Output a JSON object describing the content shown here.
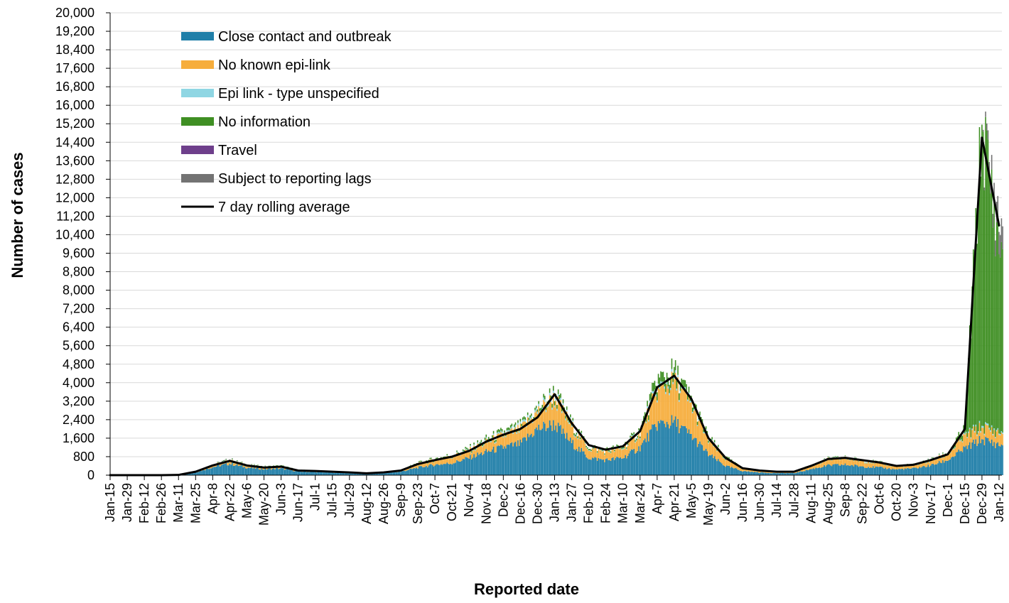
{
  "chart_data": {
    "type": "bar",
    "stacked": true,
    "xlabel": "Reported date",
    "ylabel": "Number of cases",
    "ylim": [
      0,
      20000
    ],
    "ytick_step": 800,
    "y_tick_labels": [
      "0",
      "800",
      "1,600",
      "2,400",
      "3,200",
      "4,000",
      "4,800",
      "5,600",
      "6,400",
      "7,200",
      "8,000",
      "8,800",
      "9,600",
      "10,400",
      "11,200",
      "12,000",
      "12,800",
      "13,600",
      "14,400",
      "15,200",
      "16,000",
      "16,800",
      "17,600",
      "18,400",
      "19,200",
      "20,000"
    ],
    "x_tick_labels": [
      "Jan-15",
      "Jan-29",
      "Feb-12",
      "Feb-26",
      "Mar-11",
      "Mar-25",
      "Apr-8",
      "Apr-22",
      "May-6",
      "May-20",
      "Jun-3",
      "Jun-17",
      "Jul-1",
      "Jul-15",
      "Jul-29",
      "Aug-12",
      "Aug-26",
      "Sep-9",
      "Sep-23",
      "Oct-7",
      "Oct-21",
      "Nov-4",
      "Nov-18",
      "Dec-2",
      "Dec-16",
      "Dec-30",
      "Jan-13",
      "Jan-27",
      "Feb-10",
      "Feb-24",
      "Mar-10",
      "Mar-24",
      "Apr-7",
      "Apr-21",
      "May-5",
      "May-19",
      "Jun-2",
      "Jun-16",
      "Jun-30",
      "Jul-14",
      "Jul-28",
      "Aug-11",
      "Aug-25",
      "Sep-8",
      "Sep-22",
      "Oct-6",
      "Oct-20",
      "Nov-3",
      "Nov-17",
      "Dec-1",
      "Dec-15",
      "Dec-29",
      "Jan-12"
    ],
    "grid": true,
    "legend_position": "upper-left",
    "series_colors": {
      "close_contact": "#1f7ea8",
      "no_epi_link": "#f6ad3c",
      "epi_unspecified": "#8fd6e3",
      "no_information": "#3f8f23",
      "travel": "#6e3f8b",
      "reporting_lags": "#737373",
      "rolling_average": "#000000"
    },
    "series": [
      {
        "key": "close_contact",
        "name": "Close contact and outbreak",
        "kind": "bar"
      },
      {
        "key": "no_epi_link",
        "name": "No known epi-link",
        "kind": "bar"
      },
      {
        "key": "epi_unspecified",
        "name": "Epi link - type unspecified",
        "kind": "bar"
      },
      {
        "key": "no_information",
        "name": "No information",
        "kind": "bar"
      },
      {
        "key": "travel",
        "name": "Travel",
        "kind": "bar"
      },
      {
        "key": "reporting_lags",
        "name": "Subject to reporting lags",
        "kind": "bar"
      },
      {
        "key": "rolling_average",
        "name": "7 day rolling average",
        "kind": "line"
      }
    ],
    "rolling_average_by_tick": {
      "x": [
        "Jan-15",
        "Jan-29",
        "Feb-12",
        "Feb-26",
        "Mar-11",
        "Mar-25",
        "Apr-8",
        "Apr-22",
        "May-6",
        "May-20",
        "Jun-3",
        "Jun-17",
        "Jul-1",
        "Jul-15",
        "Jul-29",
        "Aug-12",
        "Aug-26",
        "Sep-9",
        "Sep-23",
        "Oct-7",
        "Oct-21",
        "Nov-4",
        "Nov-18",
        "Dec-2",
        "Dec-16",
        "Dec-30",
        "Jan-13",
        "Jan-27",
        "Feb-10",
        "Feb-24",
        "Mar-10",
        "Mar-24",
        "Apr-7",
        "Apr-21",
        "May-5",
        "May-19",
        "Jun-2",
        "Jun-16",
        "Jun-30",
        "Jul-14",
        "Jul-28",
        "Aug-11",
        "Aug-25",
        "Sep-8",
        "Sep-22",
        "Oct-6",
        "Oct-20",
        "Nov-3",
        "Nov-17",
        "Dec-1",
        "Dec-15",
        "Dec-29",
        "Jan-12"
      ],
      "values": [
        0,
        0,
        0,
        0,
        10,
        150,
        420,
        620,
        420,
        330,
        370,
        200,
        180,
        150,
        120,
        80,
        120,
        200,
        480,
        650,
        800,
        1050,
        1450,
        1750,
        2000,
        2500,
        3500,
        2250,
        1300,
        1100,
        1250,
        1900,
        3800,
        4300,
        3300,
        1600,
        750,
        300,
        200,
        150,
        150,
        400,
        700,
        750,
        650,
        550,
        400,
        450,
        650,
        900,
        2000,
        14600,
        10800
      ]
    },
    "bar_stack_by_tick": {
      "x": [
        "Jan-15",
        "Jan-29",
        "Feb-12",
        "Feb-26",
        "Mar-11",
        "Mar-25",
        "Apr-8",
        "Apr-22",
        "May-6",
        "May-20",
        "Jun-3",
        "Jun-17",
        "Jul-1",
        "Jul-15",
        "Jul-29",
        "Aug-12",
        "Aug-26",
        "Sep-9",
        "Sep-23",
        "Oct-7",
        "Oct-21",
        "Nov-4",
        "Nov-18",
        "Dec-2",
        "Dec-16",
        "Dec-30",
        "Jan-13",
        "Jan-27",
        "Feb-10",
        "Feb-24",
        "Mar-10",
        "Mar-24",
        "Apr-7",
        "Apr-21",
        "May-5",
        "May-19",
        "Jun-2",
        "Jun-16",
        "Jun-30",
        "Jul-14",
        "Jul-28",
        "Aug-11",
        "Aug-25",
        "Sep-8",
        "Sep-22",
        "Oct-6",
        "Oct-20",
        "Nov-3",
        "Nov-17",
        "Dec-1",
        "Dec-15",
        "Dec-29",
        "Jan-12"
      ],
      "close_contact": [
        0,
        0,
        0,
        0,
        8,
        120,
        350,
        500,
        330,
        260,
        290,
        160,
        140,
        120,
        90,
        60,
        90,
        150,
        330,
        450,
        520,
        750,
        1000,
        1200,
        1350,
        2000,
        2200,
        1400,
        750,
        650,
        750,
        1200,
        2200,
        2300,
        1700,
        900,
        400,
        180,
        120,
        90,
        90,
        260,
        420,
        450,
        380,
        330,
        250,
        290,
        420,
        650,
        1150,
        1550,
        1300
      ],
      "no_epi_link": [
        0,
        0,
        0,
        0,
        2,
        30,
        80,
        120,
        90,
        70,
        80,
        40,
        40,
        30,
        30,
        20,
        30,
        50,
        150,
        200,
        280,
        300,
        400,
        500,
        600,
        700,
        1100,
        700,
        400,
        350,
        400,
        600,
        1400,
        1700,
        1300,
        600,
        300,
        100,
        70,
        50,
        50,
        130,
        250,
        270,
        230,
        190,
        130,
        140,
        200,
        250,
        500,
        500,
        500
      ],
      "epi_unspecified": [
        0,
        0,
        0,
        0,
        0,
        0,
        10,
        20,
        10,
        10,
        10,
        5,
        5,
        5,
        5,
        0,
        5,
        5,
        10,
        20,
        30,
        40,
        50,
        60,
        80,
        100,
        100,
        60,
        30,
        30,
        40,
        60,
        100,
        100,
        70,
        40,
        20,
        10,
        5,
        5,
        5,
        10,
        20,
        20,
        15,
        15,
        10,
        10,
        20,
        30,
        50,
        80,
        60
      ],
      "no_information": [
        0,
        0,
        0,
        0,
        0,
        0,
        10,
        30,
        20,
        20,
        20,
        10,
        10,
        5,
        5,
        0,
        5,
        5,
        30,
        40,
        50,
        60,
        100,
        100,
        100,
        100,
        200,
        100,
        60,
        50,
        60,
        80,
        400,
        400,
        200,
        100,
        50,
        10,
        10,
        5,
        5,
        10,
        20,
        20,
        20,
        15,
        10,
        10,
        20,
        40,
        300,
        13000,
        8000
      ],
      "travel": [
        0,
        0,
        0,
        0,
        0,
        5,
        5,
        5,
        0,
        0,
        0,
        0,
        0,
        0,
        0,
        0,
        0,
        0,
        0,
        0,
        0,
        0,
        0,
        0,
        0,
        0,
        0,
        0,
        0,
        0,
        0,
        0,
        0,
        0,
        0,
        0,
        0,
        0,
        0,
        0,
        0,
        0,
        0,
        0,
        0,
        0,
        0,
        0,
        0,
        0,
        0,
        0,
        0
      ],
      "reporting_lags": [
        0,
        0,
        0,
        0,
        0,
        0,
        0,
        0,
        0,
        0,
        0,
        0,
        0,
        0,
        0,
        0,
        0,
        0,
        0,
        0,
        0,
        0,
        0,
        0,
        0,
        0,
        0,
        0,
        0,
        0,
        0,
        0,
        0,
        0,
        0,
        0,
        0,
        0,
        0,
        0,
        0,
        0,
        0,
        0,
        0,
        0,
        0,
        0,
        0,
        0,
        0,
        0,
        1000
      ]
    }
  }
}
